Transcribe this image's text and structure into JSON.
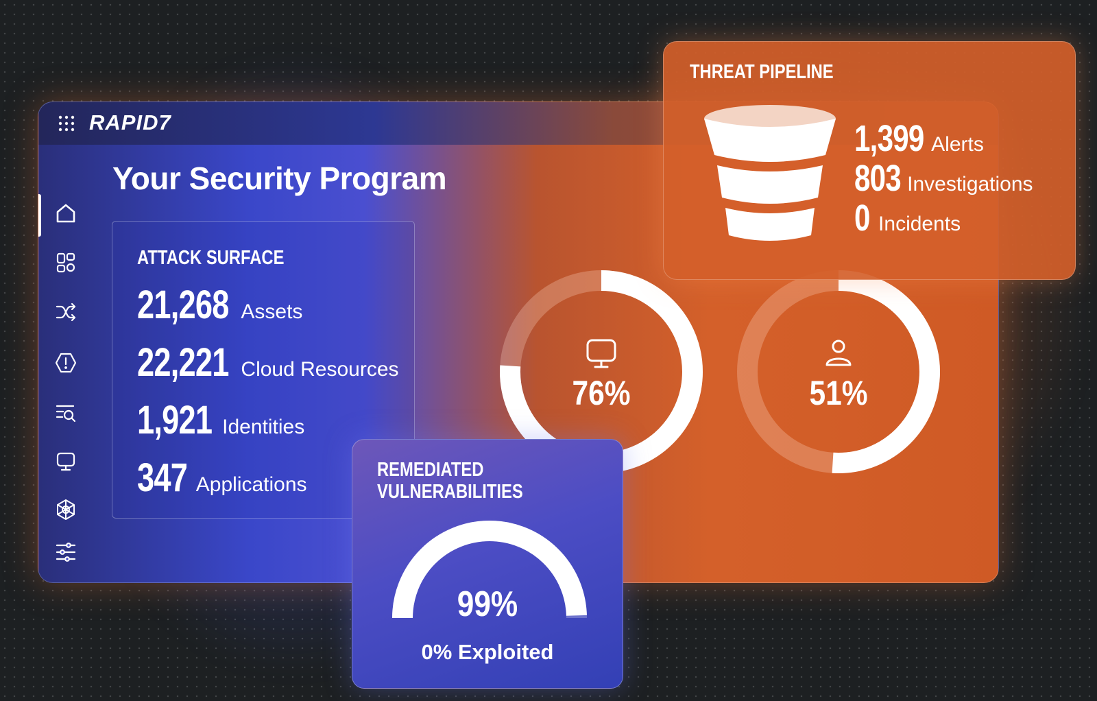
{
  "brand": {
    "logo_text": "RAPID7"
  },
  "page": {
    "title": "Your Security Program"
  },
  "sidebar": {
    "items": [
      {
        "name": "home",
        "icon": "home-icon",
        "active": true
      },
      {
        "name": "dashboards",
        "icon": "dashboard-grid-icon"
      },
      {
        "name": "workflows",
        "icon": "shuffle-icon"
      },
      {
        "name": "alerts",
        "icon": "alert-shield-icon"
      },
      {
        "name": "search",
        "icon": "list-search-icon"
      },
      {
        "name": "assets",
        "icon": "monitor-icon"
      },
      {
        "name": "integrations",
        "icon": "network-hub-icon"
      },
      {
        "name": "settings",
        "icon": "sliders-icon"
      }
    ]
  },
  "attack_surface": {
    "title": "ATTACK SURFACE",
    "stats": [
      {
        "value": "21,268",
        "label": "Assets"
      },
      {
        "value": "22,221",
        "label": "Cloud Resources"
      },
      {
        "value": "1,921",
        "label": "Identities"
      },
      {
        "value": "347",
        "label": "Applications"
      }
    ]
  },
  "coverage": {
    "devices": {
      "value": "76%",
      "fraction": 0.76,
      "icon": "monitor-icon"
    },
    "users": {
      "value": "51%",
      "fraction": 0.51,
      "icon": "user-icon"
    }
  },
  "threat_pipeline": {
    "title": "THREAT PIPELINE",
    "icon": "funnel-icon",
    "stats": [
      {
        "value": "1,399",
        "label": "Alerts"
      },
      {
        "value": "803",
        "label": "Investigations"
      },
      {
        "value": "0",
        "label": "Incidents"
      }
    ]
  },
  "remediated": {
    "title_line1": "REMEDIATED",
    "title_line2": "VULNERABILITIES",
    "value": "99%",
    "fraction": 0.99,
    "subtext": "0% Exploited"
  },
  "colors": {
    "blue_accent": "#3a47c9",
    "orange_accent": "#d4602a",
    "text": "#ffffff"
  }
}
